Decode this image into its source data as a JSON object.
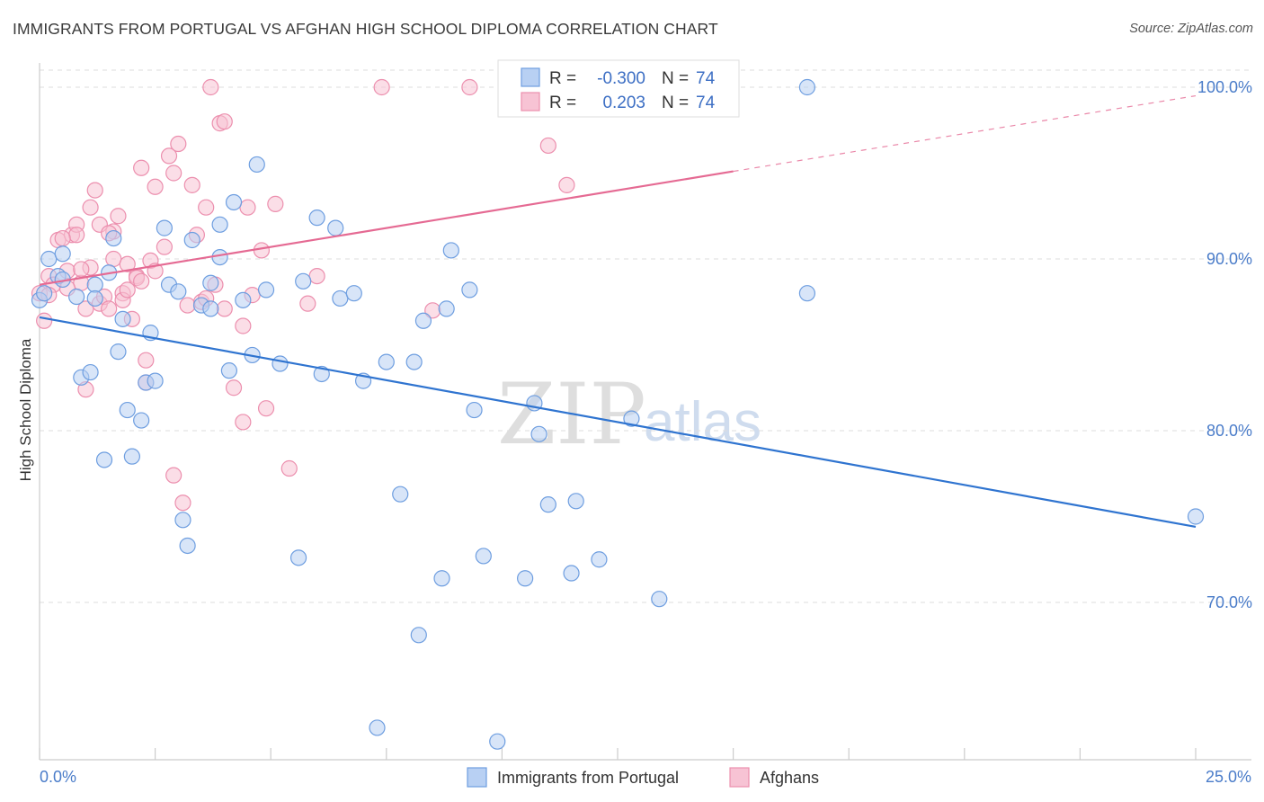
{
  "title": "IMMIGRANTS FROM PORTUGAL VS AFGHAN HIGH SCHOOL DIPLOMA CORRELATION CHART",
  "source": "Source: ZipAtlas.com",
  "watermark": {
    "zip": "ZIP",
    "atlas": "atlas"
  },
  "colors": {
    "blue_fill": "#b8d0f3",
    "blue_stroke": "#6e9ee0",
    "blue_line": "#2f74d0",
    "pink_fill": "#f7c3d4",
    "pink_stroke": "#ec8fae",
    "pink_line": "#e56a93",
    "grid": "#dddddd",
    "tick_text": "#4a7cc9"
  },
  "legend": {
    "rows": [
      {
        "r_label": "R = ",
        "r_value": "-0.300",
        "n_label": "N = ",
        "n_value": "74"
      },
      {
        "r_label": "R = ",
        "r_value": "0.203",
        "n_label": "N = ",
        "n_value": "74"
      }
    ]
  },
  "chart_data": {
    "type": "scatter",
    "title": "IMMIGRANTS FROM PORTUGAL VS AFGHAN HIGH SCHOOL DIPLOMA CORRELATION CHART",
    "xlabel": "",
    "ylabel": "High School Diploma",
    "xlim": [
      0,
      25
    ],
    "ylim": [
      61,
      101
    ],
    "x_unit": "%",
    "y_unit": "%",
    "x_tick_labels": [
      "0.0%",
      "25.0%"
    ],
    "y_ticks": [
      70,
      80,
      90,
      100
    ],
    "y_tick_labels": [
      "70.0%",
      "80.0%",
      "90.0%",
      "100.0%"
    ],
    "grid": true,
    "legend_position": "top-center",
    "series": [
      {
        "name": "Immigrants from Portugal",
        "color": "#b8d0f3",
        "trend": {
          "x": [
            0,
            25
          ],
          "y": [
            86.6,
            74.4
          ],
          "dashed_from": null
        },
        "points": [
          [
            0.2,
            90.0
          ],
          [
            0.4,
            89.0
          ],
          [
            0.5,
            90.3
          ],
          [
            0.5,
            88.8
          ],
          [
            0.8,
            87.8
          ],
          [
            0.9,
            83.1
          ],
          [
            1.1,
            83.4
          ],
          [
            1.2,
            88.5
          ],
          [
            1.2,
            87.7
          ],
          [
            1.4,
            78.3
          ],
          [
            1.5,
            89.2
          ],
          [
            1.6,
            91.2
          ],
          [
            1.7,
            84.6
          ],
          [
            1.8,
            86.5
          ],
          [
            1.9,
            81.2
          ],
          [
            2.0,
            78.5
          ],
          [
            2.2,
            80.6
          ],
          [
            2.3,
            82.8
          ],
          [
            2.4,
            85.7
          ],
          [
            2.5,
            82.9
          ],
          [
            2.7,
            91.8
          ],
          [
            2.8,
            88.5
          ],
          [
            3.0,
            88.1
          ],
          [
            3.1,
            74.8
          ],
          [
            3.2,
            73.3
          ],
          [
            3.3,
            91.1
          ],
          [
            3.5,
            87.3
          ],
          [
            3.7,
            87.1
          ],
          [
            3.7,
            88.6
          ],
          [
            3.9,
            90.1
          ],
          [
            3.9,
            92.0
          ],
          [
            4.1,
            83.5
          ],
          [
            4.2,
            93.3
          ],
          [
            4.4,
            87.6
          ],
          [
            4.6,
            84.4
          ],
          [
            4.7,
            95.5
          ],
          [
            4.9,
            88.2
          ],
          [
            5.2,
            83.9
          ],
          [
            5.6,
            72.6
          ],
          [
            5.7,
            88.7
          ],
          [
            6.0,
            92.4
          ],
          [
            6.1,
            83.3
          ],
          [
            6.4,
            91.8
          ],
          [
            6.5,
            87.7
          ],
          [
            6.8,
            88.0
          ],
          [
            7.0,
            82.9
          ],
          [
            7.3,
            62.7
          ],
          [
            7.5,
            84.0
          ],
          [
            7.8,
            76.3
          ],
          [
            8.1,
            84.0
          ],
          [
            8.2,
            68.1
          ],
          [
            8.3,
            86.4
          ],
          [
            8.7,
            71.4
          ],
          [
            8.8,
            87.1
          ],
          [
            8.9,
            90.5
          ],
          [
            9.3,
            88.2
          ],
          [
            9.4,
            81.2
          ],
          [
            9.6,
            72.7
          ],
          [
            9.9,
            61.9
          ],
          [
            10.5,
            71.4
          ],
          [
            10.7,
            81.6
          ],
          [
            10.8,
            79.8
          ],
          [
            11.0,
            75.7
          ],
          [
            11.5,
            71.7
          ],
          [
            11.6,
            75.9
          ],
          [
            12.1,
            72.5
          ],
          [
            12.8,
            80.7
          ],
          [
            13.4,
            70.2
          ],
          [
            13.7,
            100.0
          ],
          [
            16.6,
            100.0
          ],
          [
            16.6,
            88.0
          ],
          [
            25.0,
            75.0
          ],
          [
            0.0,
            87.6
          ],
          [
            0.1,
            88.0
          ]
        ]
      },
      {
        "name": "Afghans",
        "color": "#f7c3d4",
        "trend": {
          "x": [
            0,
            25
          ],
          "y": [
            88.5,
            99.5
          ],
          "dashed_from": 15
        },
        "points": [
          [
            0.1,
            86.4
          ],
          [
            0.2,
            89.0
          ],
          [
            0.4,
            91.1
          ],
          [
            0.6,
            89.3
          ],
          [
            0.7,
            91.4
          ],
          [
            0.8,
            92.0
          ],
          [
            0.8,
            91.4
          ],
          [
            0.9,
            88.6
          ],
          [
            1.0,
            82.4
          ],
          [
            1.0,
            87.1
          ],
          [
            1.1,
            89.5
          ],
          [
            1.1,
            93.0
          ],
          [
            1.2,
            94.0
          ],
          [
            1.3,
            87.4
          ],
          [
            1.3,
            92.0
          ],
          [
            1.4,
            87.8
          ],
          [
            1.5,
            87.1
          ],
          [
            1.6,
            90.0
          ],
          [
            1.6,
            91.6
          ],
          [
            1.7,
            92.5
          ],
          [
            1.8,
            88.0
          ],
          [
            1.8,
            87.6
          ],
          [
            1.9,
            89.7
          ],
          [
            2.0,
            86.5
          ],
          [
            2.1,
            89.0
          ],
          [
            2.1,
            88.9
          ],
          [
            2.2,
            95.3
          ],
          [
            2.3,
            84.1
          ],
          [
            2.3,
            82.8
          ],
          [
            2.4,
            89.9
          ],
          [
            2.5,
            94.2
          ],
          [
            2.5,
            89.3
          ],
          [
            2.7,
            90.7
          ],
          [
            2.8,
            96.0
          ],
          [
            2.9,
            95.0
          ],
          [
            2.9,
            77.4
          ],
          [
            3.0,
            96.7
          ],
          [
            3.1,
            75.8
          ],
          [
            3.2,
            87.3
          ],
          [
            3.3,
            94.3
          ],
          [
            3.4,
            91.4
          ],
          [
            3.5,
            87.5
          ],
          [
            3.6,
            93.0
          ],
          [
            3.7,
            100.0
          ],
          [
            3.8,
            88.5
          ],
          [
            3.9,
            97.9
          ],
          [
            4.0,
            98.0
          ],
          [
            4.2,
            82.5
          ],
          [
            4.4,
            80.5
          ],
          [
            4.4,
            86.1
          ],
          [
            4.5,
            93.0
          ],
          [
            4.6,
            87.9
          ],
          [
            4.8,
            90.5
          ],
          [
            4.9,
            81.3
          ],
          [
            5.1,
            93.2
          ],
          [
            5.4,
            77.8
          ],
          [
            5.8,
            87.4
          ],
          [
            6.0,
            89.0
          ],
          [
            7.4,
            100.0
          ],
          [
            8.5,
            87.0
          ],
          [
            9.3,
            100.0
          ],
          [
            11.0,
            96.6
          ],
          [
            11.4,
            94.3
          ],
          [
            0.0,
            88.0
          ],
          [
            0.3,
            88.5
          ],
          [
            0.5,
            91.2
          ],
          [
            1.5,
            91.5
          ],
          [
            2.2,
            88.7
          ],
          [
            3.6,
            87.7
          ],
          [
            4.0,
            87.1
          ],
          [
            0.6,
            88.3
          ],
          [
            1.9,
            88.2
          ],
          [
            0.2,
            87.9
          ],
          [
            0.9,
            89.4
          ]
        ]
      }
    ]
  }
}
